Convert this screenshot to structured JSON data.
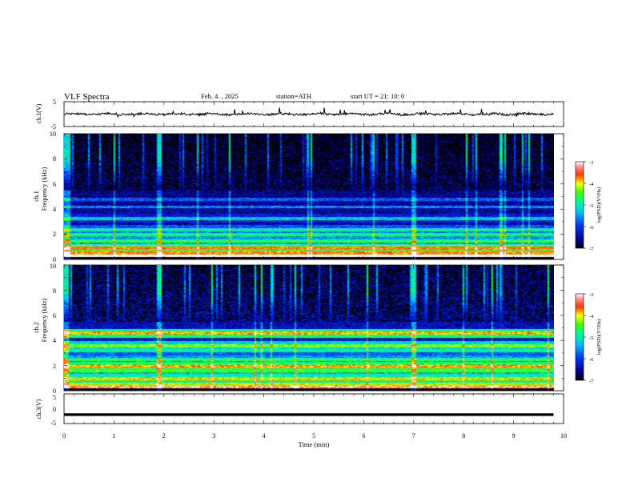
{
  "header": {
    "title": "VLF  Spectra",
    "date": "Feb. 4. , 2025",
    "station": "station=ATH",
    "start": "start  UT  =    21: 10: 0"
  },
  "colors": {
    "waveform": "#000000",
    "colormap": [
      "#000000",
      "#00008b",
      "#0000ff",
      "#0080ff",
      "#00ffff",
      "#00ff80",
      "#00ff00",
      "#ffff00",
      "#ff8000",
      "#ff0000",
      "#ff8080",
      "#ffffff"
    ]
  },
  "chart_data": [
    {
      "type": "line",
      "panel": "ch1",
      "ylabel": "ch.1(V)",
      "ylim": [
        -5,
        5
      ],
      "yticks": [
        "5",
        "-5"
      ],
      "xlim": [
        0,
        10
      ],
      "x": [
        0,
        9.8
      ],
      "baseline": 0,
      "note_shape": "noisy trace near 0 V with small spikes"
    },
    {
      "type": "heatmap",
      "panel": "ch1-spectrogram",
      "ylabel": "ch.1\nFrequency  (kHz)",
      "ylabel_line1": "ch.1",
      "ylabel_line2": "Frequency  (kHz)",
      "ylim": [
        0,
        10
      ],
      "yticks": [
        "0",
        "2",
        "4",
        "6",
        "8",
        "10"
      ],
      "xlim": [
        0,
        9.8
      ],
      "bands_khz": [
        {
          "f": 0.3,
          "level": -2.8
        },
        {
          "f": 0.9,
          "level": -3.6
        },
        {
          "f": 1.5,
          "level": -4.6
        },
        {
          "f": 2.0,
          "level": -4.8
        },
        {
          "f": 2.4,
          "level": -4.9
        },
        {
          "f": 3.3,
          "level": -5.3
        },
        {
          "f": 4.2,
          "level": -5.6
        },
        {
          "f": 4.8,
          "level": -5.8
        }
      ],
      "colorbar": {
        "label": "log(PSD)(V²/Hz)",
        "ticks": [
          "-3",
          "-4",
          "-5",
          "-6",
          "-7"
        ],
        "range": [
          -7,
          -3
        ]
      }
    },
    {
      "type": "heatmap",
      "panel": "ch2-spectrogram",
      "ylabel_line1": "ch.2",
      "ylabel_line2": "Frequency  (kHz)",
      "ylim": [
        0,
        10
      ],
      "yticks": [
        "0",
        "2",
        "4",
        "6",
        "8",
        "10"
      ],
      "xlim": [
        0,
        9.8
      ],
      "bands_khz": [
        {
          "f": 0.3,
          "level": -3.2
        },
        {
          "f": 1.0,
          "level": -4.0
        },
        {
          "f": 1.6,
          "level": -4.5
        },
        {
          "f": 2.0,
          "level": -3.8
        },
        {
          "f": 2.5,
          "level": -4.6
        },
        {
          "f": 3.2,
          "level": -4.9
        },
        {
          "f": 3.6,
          "level": -4.3
        },
        {
          "f": 4.6,
          "level": -3.9
        }
      ],
      "colorbar": {
        "label": "log(PSD)(V²/Hz)",
        "ticks": [
          "-3",
          "-4",
          "-5",
          "-6",
          "-7"
        ],
        "range": [
          -7,
          -3
        ]
      }
    },
    {
      "type": "line",
      "panel": "ch3",
      "ylabel": "ch.3(V)",
      "ylim": [
        -5,
        5
      ],
      "yticks": [
        "5",
        "0",
        "-5"
      ],
      "xlim": [
        0,
        10
      ],
      "x": [
        0,
        9.8
      ],
      "baseline": -2,
      "note_shape": "flat thick trace"
    }
  ],
  "xaxis": {
    "label": "Time  (min)",
    "ticks": [
      "0",
      "1",
      "2",
      "3",
      "4",
      "5",
      "6",
      "7",
      "8",
      "9",
      "10"
    ]
  }
}
